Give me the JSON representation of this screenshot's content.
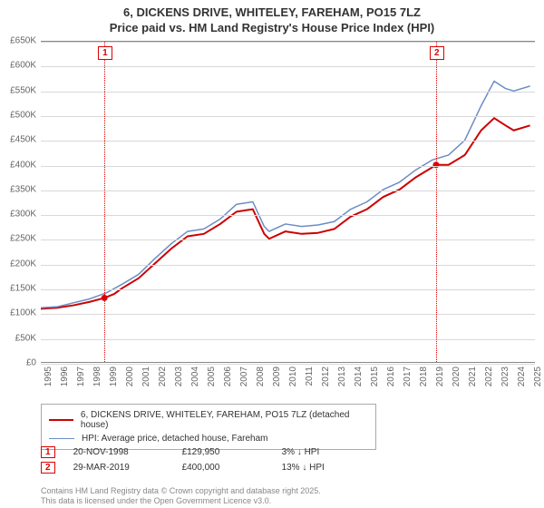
{
  "title_line1": "6, DICKENS DRIVE, WHITELEY, FAREHAM, PO15 7LZ",
  "title_line2": "Price paid vs. HM Land Registry's House Price Index (HPI)",
  "chart": {
    "type": "line",
    "background_color": "#ffffff",
    "grid_color": "#d8d8d8",
    "x_years": [
      1995,
      1996,
      1997,
      1998,
      1999,
      2000,
      2001,
      2002,
      2003,
      2004,
      2005,
      2006,
      2007,
      2008,
      2009,
      2010,
      2011,
      2012,
      2013,
      2014,
      2015,
      2016,
      2017,
      2018,
      2019,
      2020,
      2021,
      2022,
      2023,
      2024,
      2025
    ],
    "xlim": [
      1995,
      2025.3
    ],
    "ylim": [
      0,
      650
    ],
    "ytick_step": 50,
    "ytick_labels": [
      "£0",
      "£50K",
      "£100K",
      "£150K",
      "£200K",
      "£250K",
      "£300K",
      "£350K",
      "£400K",
      "£450K",
      "£500K",
      "£550K",
      "£600K",
      "£650K"
    ],
    "series": [
      {
        "name": "property",
        "legend": "6, DICKENS DRIVE, WHITELEY, FAREHAM, PO15 7LZ (detached house)",
        "color": "#cc0000",
        "line_width": 2,
        "x": [
          1995,
          1996,
          1997,
          1998,
          1998.9,
          1999.5,
          2000,
          2001,
          2002,
          2003,
          2004,
          2005,
          2006,
          2007,
          2008,
          2008.7,
          2009,
          2010,
          2011,
          2012,
          2013,
          2014,
          2015,
          2016,
          2017,
          2018,
          2019,
          2019.2,
          2020,
          2021,
          2022,
          2022.8,
          2023.5,
          2024,
          2025
        ],
        "y": [
          108,
          110,
          115,
          122,
          130,
          138,
          150,
          170,
          200,
          230,
          255,
          260,
          280,
          305,
          310,
          260,
          250,
          265,
          260,
          262,
          270,
          295,
          310,
          335,
          350,
          375,
          395,
          400,
          400,
          420,
          470,
          495,
          480,
          470,
          480
        ]
      },
      {
        "name": "hpi",
        "legend": "HPI: Average price, detached house, Fareham",
        "color": "#6b8dc4",
        "line_width": 1.5,
        "x": [
          1995,
          1996,
          1997,
          1998,
          1999,
          2000,
          2001,
          2002,
          2003,
          2004,
          2005,
          2006,
          2007,
          2008,
          2008.7,
          2009,
          2010,
          2011,
          2012,
          2013,
          2014,
          2015,
          2016,
          2017,
          2018,
          2019,
          2020,
          2021,
          2022,
          2022.8,
          2023.5,
          2024,
          2025
        ],
        "y": [
          110,
          112,
          120,
          128,
          140,
          158,
          178,
          210,
          240,
          265,
          270,
          290,
          320,
          325,
          275,
          265,
          280,
          275,
          278,
          285,
          310,
          325,
          350,
          365,
          390,
          410,
          420,
          450,
          520,
          570,
          555,
          550,
          560
        ]
      }
    ],
    "markers": [
      {
        "id": "1",
        "x": 1998.9,
        "y": 130
      },
      {
        "id": "2",
        "x": 2019.24,
        "y": 400
      }
    ]
  },
  "legend": {
    "box_border": "#aaaaaa"
  },
  "sales": [
    {
      "id": "1",
      "date": "20-NOV-1998",
      "price": "£129,950",
      "hpi": "3% ↓ HPI"
    },
    {
      "id": "2",
      "date": "29-MAR-2019",
      "price": "£400,000",
      "hpi": "13% ↓ HPI"
    }
  ],
  "license_line1": "Contains HM Land Registry data © Crown copyright and database right 2025.",
  "license_line2": "This data is licensed under the Open Government Licence v3.0."
}
